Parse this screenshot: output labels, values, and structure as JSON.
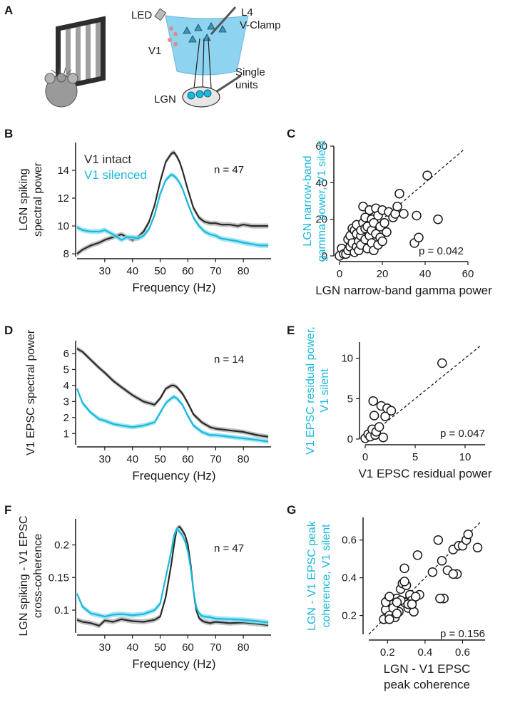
{
  "colors": {
    "intact": "#2a2a2a",
    "silenced": "#1ab8dc",
    "intact_band": "#b4b4b4",
    "silenced_band": "#8fe0f2",
    "cyan_text": "#1ab8dc",
    "black": "#1a1a1a"
  },
  "panels": {
    "A": "A",
    "B": "B",
    "C": "C",
    "D": "D",
    "E": "E",
    "F": "F",
    "G": "G"
  },
  "schematic": {
    "led": "LED",
    "l4": "L4",
    "vclamp": "V-Clamp",
    "v1": "V1",
    "single": "Single",
    "units": "units",
    "lgn": "LGN"
  },
  "chart_data": [
    {
      "id": "B",
      "type": "line",
      "title": "",
      "xlabel": "Frequency (Hz)",
      "ylabel": [
        "LGN spiking",
        "spectral power"
      ],
      "xlim": [
        20,
        90
      ],
      "ylim": [
        7.8,
        16
      ],
      "xticks": [
        30,
        40,
        50,
        60,
        70,
        80
      ],
      "yticks": [
        8,
        10,
        12,
        14
      ],
      "annotation": "n = 47",
      "legend": {
        "placement": "top-left",
        "entries": [
          "V1 intact",
          "V1 silenced"
        ]
      },
      "series": [
        {
          "name": "V1 intact",
          "x": [
            20,
            22,
            25,
            28,
            30,
            33,
            36,
            38,
            40,
            42,
            44,
            46,
            48,
            50,
            52,
            54,
            55,
            56,
            57,
            58,
            60,
            62,
            64,
            66,
            68,
            70,
            72,
            75,
            78,
            80,
            83,
            86,
            89
          ],
          "y": [
            8.0,
            8.3,
            8.6,
            8.8,
            9.0,
            9.2,
            9.4,
            9.2,
            9.0,
            9.2,
            9.6,
            10.3,
            11.5,
            13.2,
            14.6,
            15.2,
            15.3,
            15.0,
            14.6,
            14.0,
            12.6,
            11.3,
            10.6,
            10.3,
            10.2,
            10.2,
            10.1,
            10.1,
            10.0,
            10.1,
            10.0,
            10.0,
            10.0
          ]
        },
        {
          "name": "V1 silenced",
          "x": [
            20,
            22,
            25,
            28,
            30,
            33,
            36,
            38,
            40,
            42,
            44,
            46,
            48,
            50,
            52,
            54,
            55,
            56,
            57,
            58,
            60,
            62,
            64,
            66,
            68,
            70,
            72,
            75,
            78,
            80,
            83,
            86,
            89
          ],
          "y": [
            9.9,
            9.7,
            9.6,
            9.6,
            9.7,
            9.4,
            9.0,
            9.2,
            9.2,
            9.1,
            9.3,
            9.8,
            10.8,
            12.3,
            13.3,
            13.7,
            13.6,
            13.4,
            13.1,
            12.7,
            11.6,
            10.6,
            10.0,
            9.6,
            9.4,
            9.3,
            9.1,
            9.0,
            8.9,
            8.8,
            8.7,
            8.6,
            8.6
          ]
        }
      ]
    },
    {
      "id": "C",
      "type": "scatter",
      "xlabel": "LGN narrow-band gamma power",
      "ylabel": [
        "LGN narrow-band",
        "gamma power, V1 silent"
      ],
      "xlim": [
        0,
        60
      ],
      "ylim": [
        0,
        60
      ],
      "xticks": [
        0,
        20,
        40,
        60
      ],
      "yticks": [
        0,
        20,
        40,
        60
      ],
      "annotation": "p = 0.042",
      "unity_line": true,
      "x": [
        0,
        1,
        2,
        3,
        4,
        4,
        5,
        5,
        6,
        6,
        7,
        7,
        8,
        8,
        8,
        9,
        9,
        10,
        10,
        10,
        11,
        11,
        12,
        12,
        12,
        13,
        13,
        14,
        14,
        15,
        15,
        15,
        16,
        16,
        17,
        17,
        18,
        18,
        19,
        19,
        20,
        20,
        21,
        22,
        23,
        25,
        26,
        27,
        28,
        30,
        35,
        36,
        37,
        41,
        46
      ],
      "y": [
        0,
        4,
        1,
        1,
        9,
        3,
        11,
        5,
        15,
        7,
        2,
        14,
        5,
        12,
        17,
        3,
        8,
        11,
        14,
        6,
        27,
        18,
        9,
        21,
        15,
        4,
        16,
        11,
        25,
        7,
        20,
        14,
        3,
        18,
        12,
        26,
        6,
        22,
        10,
        16,
        8,
        25,
        18,
        13,
        24,
        21,
        23,
        27,
        34,
        23,
        7,
        22,
        10,
        44,
        20
      ]
    },
    {
      "id": "D",
      "type": "line",
      "xlabel": "Frequency (Hz)",
      "ylabel": [
        "V1 EPSC spectral power"
      ],
      "xlim": [
        20,
        90
      ],
      "ylim": [
        0.3,
        6.8
      ],
      "xticks": [
        30,
        40,
        50,
        60,
        70,
        80
      ],
      "yticks": [
        1,
        2,
        3,
        4,
        5,
        6
      ],
      "annotation": "n = 14",
      "series": [
        {
          "name": "V1 intact",
          "x": [
            20,
            22,
            25,
            28,
            30,
            33,
            36,
            40,
            44,
            48,
            50,
            52,
            54,
            55,
            56,
            58,
            60,
            62,
            65,
            68,
            70,
            75,
            80,
            85,
            89
          ],
          "y": [
            6.3,
            6.1,
            5.6,
            5.1,
            4.8,
            4.3,
            3.9,
            3.4,
            3.0,
            2.8,
            3.2,
            3.8,
            4.0,
            4.0,
            3.9,
            3.5,
            2.9,
            2.2,
            1.7,
            1.4,
            1.3,
            1.2,
            1.1,
            0.9,
            0.8
          ]
        },
        {
          "name": "V1 silenced",
          "x": [
            20,
            22,
            25,
            28,
            30,
            33,
            36,
            40,
            44,
            48,
            50,
            52,
            54,
            55,
            56,
            58,
            60,
            62,
            65,
            68,
            70,
            75,
            80,
            85,
            89
          ],
          "y": [
            3.8,
            2.9,
            2.3,
            1.9,
            1.8,
            1.6,
            1.5,
            1.4,
            1.5,
            1.7,
            2.3,
            2.9,
            3.2,
            3.3,
            3.2,
            2.8,
            2.1,
            1.5,
            1.1,
            0.9,
            0.9,
            0.8,
            0.7,
            0.6,
            0.5
          ]
        }
      ]
    },
    {
      "id": "E",
      "type": "scatter",
      "xlabel": "V1 EPSC residual power",
      "ylabel": [
        "V1 EPSC residual power,",
        "V1 silent"
      ],
      "xlim": [
        0,
        12
      ],
      "ylim": [
        0,
        12
      ],
      "xticks": [
        0,
        5,
        10
      ],
      "yticks": [
        0,
        5,
        10
      ],
      "annotation": "p = 0.047",
      "unity_line": true,
      "x": [
        0.0,
        0.3,
        0.5,
        0.7,
        0.8,
        0.9,
        1.0,
        1.1,
        1.4,
        1.6,
        1.8,
        2.0,
        2.2,
        2.6,
        7.7
      ],
      "y": [
        0.1,
        0.6,
        0.3,
        1.2,
        4.7,
        2.9,
        0.5,
        0.9,
        1.5,
        4.1,
        0.2,
        2.8,
        3.8,
        3.5,
        9.4
      ]
    },
    {
      "id": "F",
      "type": "line",
      "xlabel": "Frequency (Hz)",
      "ylabel": [
        "LGN spiking - V1 EPSC",
        "cross-coherence"
      ],
      "xlim": [
        20,
        90
      ],
      "ylim": [
        0.065,
        0.24
      ],
      "xticks": [
        30,
        40,
        50,
        60,
        70,
        80
      ],
      "yticks": [
        0.1,
        0.15,
        0.2
      ],
      "annotation": "n = 47",
      "series": [
        {
          "name": "V1 intact",
          "x": [
            20,
            22,
            25,
            28,
            30,
            33,
            36,
            40,
            44,
            48,
            50,
            52,
            54,
            55,
            56,
            57,
            58,
            59,
            60,
            61,
            62,
            63,
            64,
            65,
            66,
            68,
            70,
            75,
            80,
            85,
            89
          ],
          "y": [
            0.085,
            0.082,
            0.08,
            0.076,
            0.084,
            0.082,
            0.086,
            0.083,
            0.082,
            0.085,
            0.09,
            0.12,
            0.17,
            0.2,
            0.225,
            0.228,
            0.222,
            0.215,
            0.2,
            0.17,
            0.13,
            0.1,
            0.088,
            0.084,
            0.082,
            0.08,
            0.082,
            0.08,
            0.081,
            0.079,
            0.077
          ]
        },
        {
          "name": "V1 silenced",
          "x": [
            20,
            22,
            25,
            28,
            30,
            33,
            36,
            40,
            44,
            48,
            50,
            52,
            54,
            55,
            56,
            57,
            58,
            59,
            60,
            61,
            62,
            63,
            64,
            65,
            66,
            68,
            70,
            75,
            80,
            85,
            89
          ],
          "y": [
            0.125,
            0.105,
            0.095,
            0.092,
            0.09,
            0.093,
            0.094,
            0.092,
            0.094,
            0.1,
            0.11,
            0.15,
            0.19,
            0.215,
            0.225,
            0.22,
            0.215,
            0.205,
            0.19,
            0.165,
            0.13,
            0.105,
            0.095,
            0.091,
            0.09,
            0.089,
            0.087,
            0.086,
            0.085,
            0.083,
            0.081
          ]
        }
      ]
    },
    {
      "id": "G",
      "type": "scatter",
      "xlabel": [
        "LGN - V1 EPSC",
        "peak coherence"
      ],
      "ylabel": [
        "LGN - V1 EPSC peak",
        "coherence, V1 silent"
      ],
      "xlim": [
        0.1,
        0.72
      ],
      "ylim": [
        0.1,
        0.72
      ],
      "xticks": [
        0.2,
        0.4,
        0.6
      ],
      "yticks": [
        0.2,
        0.4,
        0.6
      ],
      "annotation": "p = 0.156",
      "unity_line": true,
      "x": [
        0.18,
        0.19,
        0.2,
        0.21,
        0.22,
        0.23,
        0.24,
        0.25,
        0.26,
        0.27,
        0.28,
        0.29,
        0.3,
        0.31,
        0.32,
        0.33,
        0.34,
        0.36,
        0.37,
        0.19,
        0.21,
        0.23,
        0.25,
        0.27,
        0.29,
        0.31,
        0.35,
        0.44,
        0.47,
        0.49,
        0.5,
        0.52,
        0.55,
        0.57,
        0.58,
        0.6,
        0.62,
        0.63,
        0.68,
        0.48,
        0.55,
        0.29,
        0.33,
        0.21,
        0.25
      ],
      "y": [
        0.18,
        0.23,
        0.28,
        0.2,
        0.29,
        0.26,
        0.19,
        0.29,
        0.22,
        0.34,
        0.37,
        0.27,
        0.36,
        0.24,
        0.31,
        0.28,
        0.22,
        0.52,
        0.31,
        0.27,
        0.18,
        0.24,
        0.21,
        0.28,
        0.45,
        0.26,
        0.3,
        0.43,
        0.6,
        0.49,
        0.29,
        0.44,
        0.55,
        0.42,
        0.57,
        0.57,
        0.6,
        0.63,
        0.56,
        0.29,
        0.42,
        0.38,
        0.26,
        0.3,
        0.27
      ]
    }
  ]
}
